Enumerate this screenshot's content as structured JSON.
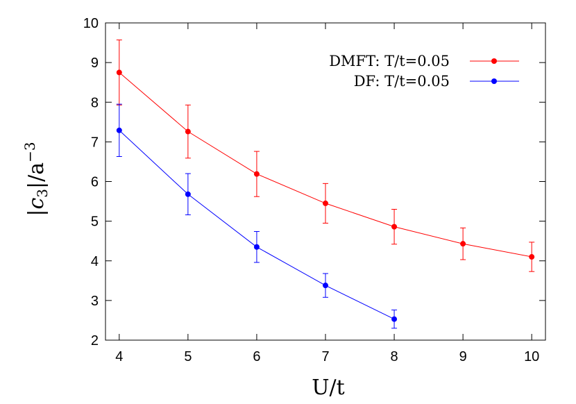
{
  "chart_data": {
    "type": "line",
    "xlabel": "U/t",
    "ylabel_parts": {
      "open": "|",
      "var": "c",
      "sub": "3",
      "close": "|/a",
      "sup": "−3"
    },
    "xlim": [
      3.8,
      10.2
    ],
    "ylim": [
      2,
      10
    ],
    "xticks": [
      "4",
      "5",
      "6",
      "7",
      "8",
      "9",
      "10"
    ],
    "yticks": [
      "2",
      "3",
      "4",
      "5",
      "6",
      "7",
      "8",
      "9",
      "10"
    ],
    "grid": false,
    "legend_position": "top-right",
    "series": [
      {
        "name": "DMFT: T/t=0.05",
        "color": "#ff0000",
        "x": [
          4,
          5,
          6,
          7,
          8,
          9,
          10
        ],
        "y": [
          8.75,
          7.26,
          6.19,
          5.45,
          4.86,
          4.43,
          4.1
        ],
        "yerr": [
          0.82,
          0.67,
          0.57,
          0.5,
          0.44,
          0.4,
          0.37
        ]
      },
      {
        "name": "DF: T/t=0.05",
        "color": "#0000ff",
        "x": [
          4,
          5,
          6,
          7,
          8
        ],
        "y": [
          7.29,
          5.68,
          4.35,
          3.38,
          2.53
        ],
        "yerr": [
          0.66,
          0.52,
          0.39,
          0.3,
          0.23
        ]
      }
    ]
  }
}
